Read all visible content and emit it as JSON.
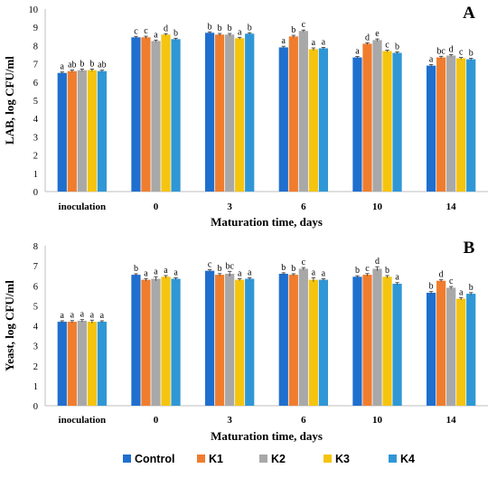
{
  "colors": {
    "Control": "#1f6fcf",
    "K1": "#f07d2e",
    "K2": "#a8a8a8",
    "K3": "#f5c40e",
    "K4": "#2f97d6"
  },
  "legend": [
    "Control",
    "K1",
    "K2",
    "K3",
    "K4"
  ],
  "chart_data": [
    {
      "type": "bar",
      "panel": "A",
      "title": "",
      "ylabel": "LAB,  log CFU/ml",
      "xlabel": "Maturation time, days",
      "ylim": [
        0,
        10
      ],
      "yticks": [
        0,
        1,
        2,
        3,
        4,
        5,
        6,
        7,
        8,
        9,
        10
      ],
      "grid": false,
      "legend_position": "bottom",
      "categories": [
        "inoculation",
        "0",
        "3",
        "6",
        "10",
        "14"
      ],
      "series": [
        {
          "name": "Control",
          "values": [
            6.5,
            8.45,
            8.7,
            7.9,
            7.35,
            6.9
          ],
          "errors": [
            0.05,
            0.05,
            0.05,
            0.06,
            0.05,
            0.06
          ],
          "letters": [
            "a",
            "c",
            "b",
            "a",
            "a",
            "a"
          ]
        },
        {
          "name": "K1",
          "values": [
            6.6,
            8.45,
            8.6,
            8.5,
            8.1,
            7.35
          ],
          "errors": [
            0.06,
            0.06,
            0.06,
            0.06,
            0.05,
            0.06
          ],
          "letters": [
            "ab",
            "c",
            "b",
            "b",
            "d",
            "bc"
          ]
        },
        {
          "name": "K2",
          "values": [
            6.65,
            8.25,
            8.6,
            8.8,
            8.3,
            7.45
          ],
          "errors": [
            0.06,
            0.05,
            0.06,
            0.05,
            0.06,
            0.05
          ],
          "letters": [
            "b",
            "a",
            "b",
            "c",
            "e",
            "d"
          ]
        },
        {
          "name": "K3",
          "values": [
            6.65,
            8.6,
            8.4,
            7.8,
            7.7,
            7.3
          ],
          "errors": [
            0.06,
            0.05,
            0.05,
            0.07,
            0.05,
            0.05
          ],
          "letters": [
            "b",
            "d",
            "a",
            "a",
            "c",
            "c"
          ]
        },
        {
          "name": "K4",
          "values": [
            6.6,
            8.35,
            8.65,
            7.85,
            7.6,
            7.25
          ],
          "errors": [
            0.05,
            0.05,
            0.05,
            0.05,
            0.05,
            0.05
          ],
          "letters": [
            "ab",
            "b",
            "b",
            "a",
            "b",
            "b"
          ]
        }
      ]
    },
    {
      "type": "bar",
      "panel": "B",
      "title": "",
      "ylabel": "Yeast, log CFU/ml",
      "xlabel": "Maturation time, days",
      "ylim": [
        0,
        8
      ],
      "yticks": [
        0,
        1,
        2,
        3,
        4,
        5,
        6,
        7,
        8
      ],
      "grid": false,
      "legend_position": "bottom",
      "categories": [
        "inoculation",
        "0",
        "3",
        "6",
        "10",
        "14"
      ],
      "series": [
        {
          "name": "Control",
          "values": [
            4.2,
            6.55,
            6.75,
            6.6,
            6.45,
            5.65
          ],
          "errors": [
            0.05,
            0.05,
            0.05,
            0.05,
            0.05,
            0.06
          ],
          "letters": [
            "a",
            "b",
            "c",
            "b",
            "b",
            "b"
          ]
        },
        {
          "name": "K1",
          "values": [
            4.2,
            6.3,
            6.55,
            6.55,
            6.55,
            6.25
          ],
          "errors": [
            0.06,
            0.06,
            0.06,
            0.05,
            0.06,
            0.05
          ],
          "letters": [
            "a",
            "a",
            "b",
            "b",
            "c",
            "d"
          ]
        },
        {
          "name": "K2",
          "values": [
            4.25,
            6.35,
            6.6,
            6.85,
            6.85,
            5.9
          ],
          "errors": [
            0.06,
            0.1,
            0.12,
            0.06,
            0.1,
            0.06
          ],
          "letters": [
            "a",
            "a",
            "bc",
            "c",
            "d",
            "c"
          ]
        },
        {
          "name": "K3",
          "values": [
            4.2,
            6.45,
            6.3,
            6.3,
            6.45,
            5.35
          ],
          "errors": [
            0.08,
            0.06,
            0.05,
            0.1,
            0.06,
            0.06
          ],
          "letters": [
            "a",
            "a",
            "a",
            "a",
            "b",
            "a"
          ]
        },
        {
          "name": "K4",
          "values": [
            4.2,
            6.35,
            6.35,
            6.3,
            6.1,
            5.6
          ],
          "errors": [
            0.05,
            0.05,
            0.05,
            0.05,
            0.06,
            0.06
          ],
          "letters": [
            "a",
            "a",
            "a",
            "a",
            "a",
            "b"
          ]
        }
      ]
    }
  ]
}
